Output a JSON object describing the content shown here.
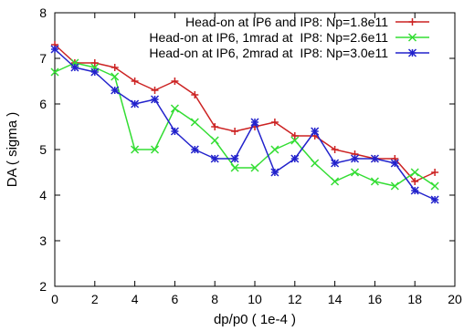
{
  "chart_data": {
    "type": "line",
    "title": "",
    "xlabel": "dp/p0 ( 1e-4 )",
    "ylabel": "DA ( sigma )",
    "xlim": [
      0,
      20
    ],
    "ylim": [
      2,
      8
    ],
    "xticks": [
      0,
      2,
      4,
      6,
      8,
      10,
      12,
      14,
      16,
      18,
      20
    ],
    "yticks": [
      2,
      3,
      4,
      5,
      6,
      7,
      8
    ],
    "grid": false,
    "legend_position": "top-right",
    "x": [
      0,
      1,
      2,
      3,
      4,
      5,
      6,
      7,
      8,
      9,
      10,
      11,
      12,
      13,
      14,
      15,
      16,
      17,
      18,
      19
    ],
    "series": [
      {
        "name": "Head-on at IP6 and IP8: Np=1.8e11",
        "color": "#cc2222",
        "marker": "plus",
        "values": [
          7.3,
          6.9,
          6.9,
          6.8,
          6.5,
          6.3,
          6.5,
          6.2,
          5.5,
          5.4,
          5.5,
          5.6,
          5.3,
          5.3,
          5.0,
          4.9,
          4.8,
          4.8,
          4.3,
          4.5
        ]
      },
      {
        "name": "Head-on at IP6, 1mrad at  IP8: Np=2.6e11",
        "color": "#33dd33",
        "marker": "x",
        "values": [
          6.7,
          6.9,
          6.8,
          6.6,
          5.0,
          5.0,
          5.9,
          5.6,
          5.2,
          4.6,
          4.6,
          5.0,
          5.2,
          4.7,
          4.3,
          4.5,
          4.3,
          4.2,
          4.5,
          4.2
        ]
      },
      {
        "name": "Head-on at IP6, 2mrad at  IP8: Np=3.0e11",
        "color": "#2222cc",
        "marker": "star",
        "values": [
          7.2,
          6.8,
          6.7,
          6.3,
          6.0,
          6.1,
          5.4,
          5.0,
          4.8,
          4.8,
          5.6,
          4.5,
          4.8,
          5.4,
          4.7,
          4.8,
          4.8,
          4.7,
          4.1,
          3.9
        ]
      }
    ]
  }
}
